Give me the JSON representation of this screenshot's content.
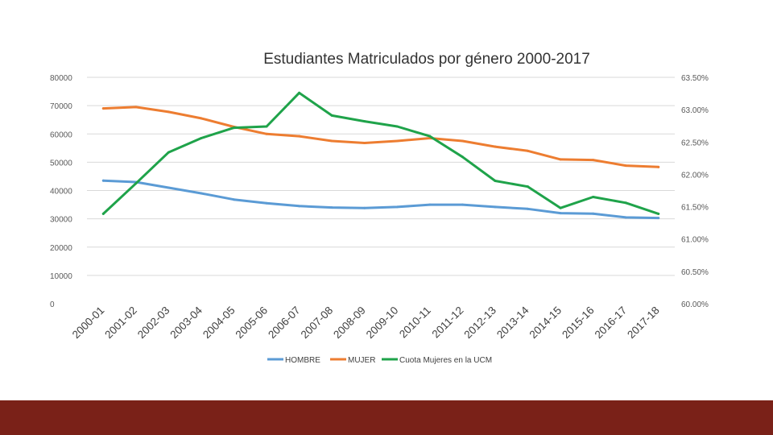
{
  "chart_data": {
    "type": "line",
    "title": "Estudiantes Matriculados por género 2000-2017",
    "categories": [
      "2000-01",
      "2001-02",
      "2002-03",
      "2003-04",
      "2004-05",
      "2005-06",
      "2006-07",
      "2007-08",
      "2008-09",
      "2009-10",
      "2010-11",
      "2011-12",
      "2012-13",
      "2013-14",
      "2014-15",
      "2015-16",
      "2016-17",
      "2017-18"
    ],
    "y_left": {
      "min": 0,
      "max": 80000,
      "ticks": [
        "0",
        "10000",
        "20000",
        "30000",
        "40000",
        "50000",
        "60000",
        "70000",
        "80000"
      ]
    },
    "y_right": {
      "min": 60.0,
      "max": 63.5,
      "ticks": [
        "60.00%",
        "60.50%",
        "61.00%",
        "61.50%",
        "62.00%",
        "62.50%",
        "63.00%",
        "63.50%"
      ]
    },
    "series": [
      {
        "name": "HOMBRE",
        "axis": "left",
        "color": "#5b9bd5",
        "values": [
          43500,
          43000,
          41000,
          39000,
          36800,
          35500,
          34500,
          34000,
          33800,
          34200,
          35000,
          35000,
          34200,
          33500,
          32000,
          31800,
          30500,
          30300
        ]
      },
      {
        "name": "MUJER",
        "axis": "left",
        "color": "#ed7d31",
        "values": [
          69000,
          69500,
          67800,
          65500,
          62500,
          60000,
          59200,
          57500,
          56800,
          57500,
          58500,
          57500,
          55500,
          54000,
          51000,
          50800,
          48800,
          48300
        ]
      },
      {
        "name": "Cuota Mujeres en la UCM",
        "axis": "right",
        "color": "#1fa34a",
        "values": [
          61.39,
          61.86,
          62.34,
          62.56,
          62.72,
          62.74,
          63.26,
          62.91,
          62.82,
          62.74,
          62.59,
          62.27,
          61.9,
          61.81,
          61.48,
          61.65,
          61.56,
          61.39
        ]
      }
    ],
    "legend_position": "bottom",
    "grid": true
  }
}
